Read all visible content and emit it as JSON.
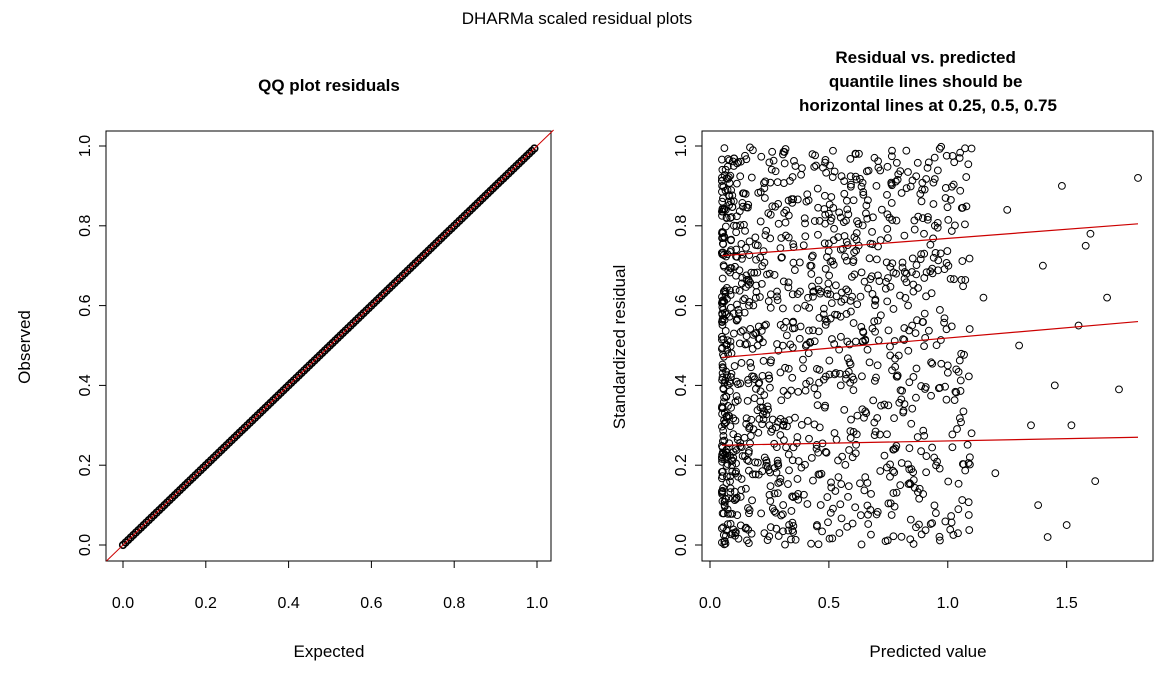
{
  "figure": {
    "title": "DHARMa scaled residual plots"
  },
  "chart_data": [
    {
      "type": "scatter",
      "title": "QQ plot residuals",
      "xlabel": "Expected",
      "ylabel": "Observed",
      "xlim": [
        0,
        1
      ],
      "ylim": [
        0,
        1
      ],
      "xticks": [
        0.0,
        0.2,
        0.4,
        0.6,
        0.8,
        1.0
      ],
      "yticks": [
        0.0,
        0.2,
        0.4,
        0.6,
        0.8,
        1.0
      ],
      "xtick_labels": [
        "0.0",
        "0.2",
        "0.4",
        "0.6",
        "0.8",
        "1.0"
      ],
      "ytick_labels": [
        "0.0",
        "0.2",
        "0.4",
        "0.6",
        "0.8",
        "1.0"
      ],
      "series": [
        {
          "x": [
            0.0,
            0.05,
            0.1,
            0.15,
            0.2,
            0.25,
            0.3,
            0.35,
            0.4,
            0.45,
            0.5,
            0.55,
            0.6,
            0.65,
            0.7,
            0.75,
            0.8,
            0.85,
            0.9,
            0.95,
            1.0
          ],
          "y": [
            0.0,
            0.05,
            0.1,
            0.15,
            0.2,
            0.25,
            0.3,
            0.35,
            0.4,
            0.45,
            0.5,
            0.55,
            0.6,
            0.65,
            0.7,
            0.75,
            0.8,
            0.85,
            0.9,
            0.95,
            1.0
          ]
        }
      ],
      "reference_line": {
        "intercept": 0,
        "slope": 1,
        "color": "#cc0000"
      },
      "marker_color": "#000000",
      "grid": false
    },
    {
      "type": "scatter",
      "title": [
        "Residual vs. predicted",
        "quantile lines should be",
        "horizontal lines at 0.25, 0.5, 0.75"
      ],
      "xlabel": "Predicted value",
      "ylabel": "Standardized residual",
      "xlim": [
        0,
        1.8
      ],
      "ylim": [
        0,
        1
      ],
      "xticks": [
        0.0,
        0.5,
        1.0,
        1.5
      ],
      "yticks": [
        0.0,
        0.2,
        0.4,
        0.6,
        0.8,
        1.0
      ],
      "xtick_labels": [
        "0.0",
        "0.5",
        "1.0",
        "1.5"
      ],
      "ytick_labels": [
        "0.0",
        "0.2",
        "0.4",
        "0.6",
        "0.8",
        "1.0"
      ],
      "points": [
        [
          0.1,
          0.95
        ],
        [
          0.15,
          0.88
        ],
        [
          0.2,
          0.5
        ],
        [
          0.25,
          0.3
        ],
        [
          0.3,
          0.72
        ],
        [
          0.35,
          0.12
        ],
        [
          0.4,
          0.6
        ],
        [
          0.45,
          0.05
        ],
        [
          0.5,
          0.83
        ],
        [
          0.55,
          0.4
        ],
        [
          0.6,
          0.22
        ],
        [
          0.65,
          0.66
        ],
        [
          0.7,
          0.9
        ],
        [
          0.75,
          0.35
        ],
        [
          0.8,
          0.15
        ],
        [
          0.85,
          0.55
        ],
        [
          0.9,
          0.78
        ],
        [
          0.95,
          0.08
        ],
        [
          1.0,
          0.45
        ],
        [
          1.05,
          0.97
        ],
        [
          1.1,
          0.28
        ],
        [
          1.15,
          0.62
        ],
        [
          1.2,
          0.18
        ],
        [
          1.25,
          0.84
        ],
        [
          1.3,
          0.5
        ],
        [
          1.35,
          0.3
        ],
        [
          1.4,
          0.7
        ],
        [
          1.45,
          0.4
        ],
        [
          1.5,
          0.05
        ],
        [
          1.55,
          0.55
        ],
        [
          1.6,
          0.78
        ],
        [
          1.67,
          0.62
        ],
        [
          1.72,
          0.39
        ],
        [
          1.8,
          0.92
        ],
        [
          1.62,
          0.16
        ],
        [
          1.52,
          0.3
        ],
        [
          1.42,
          0.02
        ],
        [
          1.38,
          0.1
        ],
        [
          1.58,
          0.75
        ],
        [
          1.48,
          0.9
        ]
      ],
      "dense_region": {
        "x_range": [
          0.05,
          0.8
        ],
        "y_range": [
          0,
          1
        ]
      },
      "quantile_lines": [
        {
          "quantile": 0.25,
          "x": [
            0.05,
            1.8
          ],
          "y": [
            0.25,
            0.27
          ]
        },
        {
          "quantile": 0.5,
          "x": [
            0.05,
            1.8
          ],
          "y": [
            0.47,
            0.56
          ]
        },
        {
          "quantile": 0.75,
          "x": [
            0.05,
            1.8
          ],
          "y": [
            0.725,
            0.805
          ]
        }
      ],
      "marker_color": "#000000",
      "line_color": "#cc0000",
      "grid": false
    }
  ]
}
